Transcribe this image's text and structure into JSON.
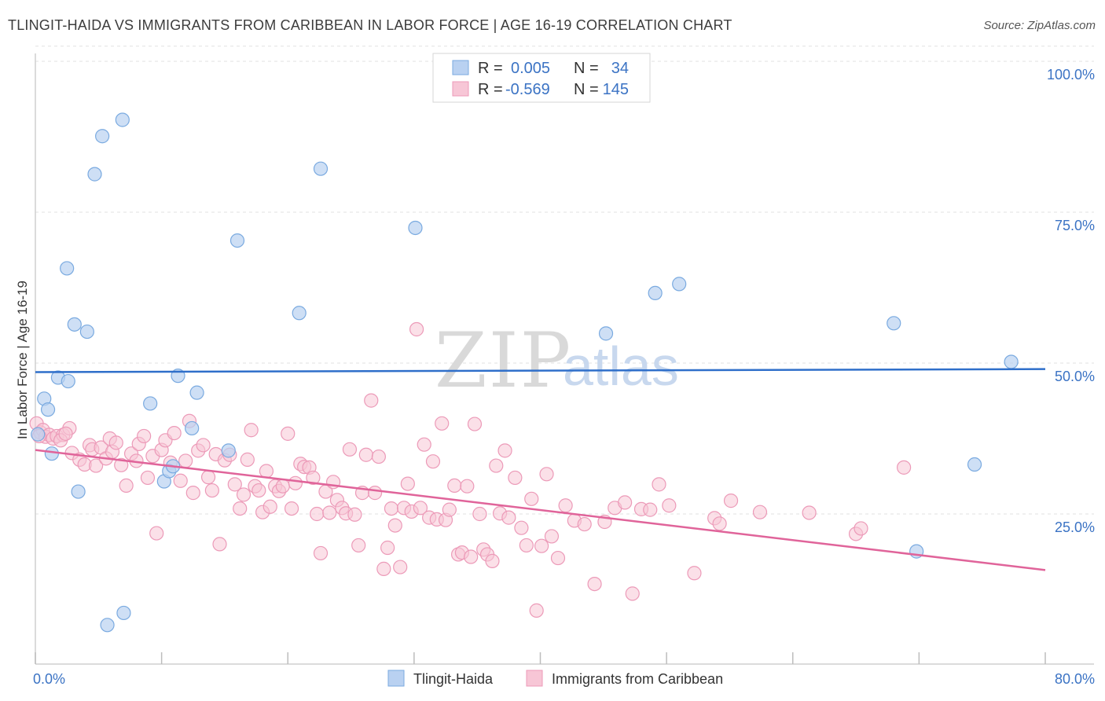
{
  "title": "TLINGIT-HAIDA VS IMMIGRANTS FROM CARIBBEAN IN LABOR FORCE | AGE 16-19 CORRELATION CHART",
  "source": "Source: ZipAtlas.com",
  "watermark": {
    "zip": "ZIP",
    "atlas": "atlas"
  },
  "chart_data": {
    "type": "scatter",
    "title": "TLINGIT-HAIDA VS IMMIGRANTS FROM CARIBBEAN IN LABOR FORCE | AGE 16-19 CORRELATION CHART",
    "xlabel": "",
    "ylabel": "In Labor Force | Age 16-19",
    "xlim": [
      0,
      80
    ],
    "ylim": [
      0,
      105
    ],
    "x_tick_labels": {
      "left": "0.0%",
      "right": "80.0%"
    },
    "y_ticks": [
      25,
      50,
      75,
      100
    ],
    "y_tick_labels": [
      "25.0%",
      "50.0%",
      "75.0%",
      "100.0%"
    ],
    "grid": true,
    "legend": {
      "position": "top-center",
      "entries": [
        {
          "r_label": "R =",
          "r_value": "0.005",
          "n_label": "N =",
          "n_value": "34"
        },
        {
          "r_label": "R =",
          "r_value": "-0.569",
          "n_label": "N =",
          "n_value": "145"
        }
      ]
    },
    "series": [
      {
        "name": "Tlingit-Haida",
        "color": "#7aaae0",
        "fill": "#b9d1f1",
        "trend": {
          "x": [
            0,
            80
          ],
          "y": [
            48.5,
            49.0
          ],
          "color": "#2f6fca"
        },
        "points": [
          [
            0.2,
            38.2
          ],
          [
            0.7,
            44.1
          ],
          [
            1.0,
            42.3
          ],
          [
            1.3,
            35.0
          ],
          [
            1.8,
            47.6
          ],
          [
            2.6,
            47.0
          ],
          [
            2.5,
            65.7
          ],
          [
            3.1,
            56.4
          ],
          [
            3.4,
            28.7
          ],
          [
            4.1,
            55.2
          ],
          [
            4.7,
            81.3
          ],
          [
            5.3,
            87.6
          ],
          [
            5.7,
            6.6
          ],
          [
            6.9,
            90.3
          ],
          [
            7.0,
            8.6
          ],
          [
            9.1,
            43.3
          ],
          [
            10.2,
            30.4
          ],
          [
            10.6,
            32.1
          ],
          [
            11.3,
            47.9
          ],
          [
            12.4,
            39.2
          ],
          [
            12.8,
            45.1
          ],
          [
            15.3,
            35.5
          ],
          [
            16.0,
            70.3
          ],
          [
            20.9,
            58.3
          ],
          [
            22.6,
            82.2
          ],
          [
            30.1,
            72.4
          ],
          [
            45.2,
            54.9
          ],
          [
            49.1,
            61.6
          ],
          [
            51.0,
            63.1
          ],
          [
            68.0,
            56.6
          ],
          [
            69.8,
            18.8
          ],
          [
            74.4,
            33.2
          ],
          [
            77.3,
            50.2
          ],
          [
            10.9,
            32.9
          ]
        ]
      },
      {
        "name": "Immigrants from Caribbean",
        "color": "#ec9ab8",
        "fill": "#f7c6d6",
        "trend": {
          "x": [
            0,
            80
          ],
          "y": [
            35.6,
            15.7
          ],
          "color": "#e0649a"
        },
        "points": [
          [
            0.1,
            40.0
          ],
          [
            0.4,
            38.5
          ],
          [
            0.6,
            38.9
          ],
          [
            0.8,
            37.8
          ],
          [
            1.1,
            38.1
          ],
          [
            1.4,
            37.5
          ],
          [
            1.7,
            37.9
          ],
          [
            2.2,
            38.1
          ],
          [
            2.7,
            39.2
          ],
          [
            2.9,
            35.1
          ],
          [
            3.5,
            34.0
          ],
          [
            3.9,
            33.2
          ],
          [
            4.3,
            36.4
          ],
          [
            4.5,
            35.7
          ],
          [
            4.8,
            33.0
          ],
          [
            5.2,
            36.0
          ],
          [
            5.6,
            34.2
          ],
          [
            5.9,
            37.5
          ],
          [
            6.1,
            35.3
          ],
          [
            6.4,
            36.8
          ],
          [
            6.8,
            33.1
          ],
          [
            7.2,
            29.7
          ],
          [
            7.6,
            35.0
          ],
          [
            8.0,
            33.8
          ],
          [
            8.2,
            36.6
          ],
          [
            8.6,
            37.9
          ],
          [
            8.9,
            31.0
          ],
          [
            9.3,
            34.6
          ],
          [
            9.6,
            21.8
          ],
          [
            10.0,
            35.6
          ],
          [
            10.3,
            37.2
          ],
          [
            10.7,
            33.5
          ],
          [
            11.0,
            38.4
          ],
          [
            11.5,
            30.5
          ],
          [
            11.9,
            33.8
          ],
          [
            12.2,
            40.4
          ],
          [
            12.5,
            28.5
          ],
          [
            12.9,
            35.5
          ],
          [
            13.3,
            36.4
          ],
          [
            13.7,
            31.1
          ],
          [
            14.0,
            28.9
          ],
          [
            14.3,
            34.9
          ],
          [
            14.6,
            20.0
          ],
          [
            15.0,
            33.9
          ],
          [
            15.4,
            34.8
          ],
          [
            15.8,
            29.9
          ],
          [
            16.2,
            25.9
          ],
          [
            16.5,
            28.2
          ],
          [
            16.8,
            34.0
          ],
          [
            17.1,
            38.9
          ],
          [
            17.4,
            29.6
          ],
          [
            17.7,
            28.9
          ],
          [
            18.0,
            25.3
          ],
          [
            18.3,
            32.1
          ],
          [
            18.6,
            26.2
          ],
          [
            19.0,
            29.6
          ],
          [
            19.3,
            28.8
          ],
          [
            19.6,
            29.6
          ],
          [
            20.0,
            38.3
          ],
          [
            20.3,
            25.9
          ],
          [
            20.6,
            30.1
          ],
          [
            21.0,
            33.3
          ],
          [
            21.3,
            32.8
          ],
          [
            21.7,
            32.7
          ],
          [
            22.0,
            31.0
          ],
          [
            22.3,
            25.0
          ],
          [
            22.6,
            18.5
          ],
          [
            23.0,
            28.7
          ],
          [
            23.3,
            25.2
          ],
          [
            23.6,
            30.3
          ],
          [
            23.9,
            27.3
          ],
          [
            24.3,
            26.0
          ],
          [
            24.6,
            25.1
          ],
          [
            24.9,
            35.7
          ],
          [
            25.3,
            24.9
          ],
          [
            25.6,
            19.8
          ],
          [
            25.9,
            28.5
          ],
          [
            26.2,
            34.8
          ],
          [
            26.6,
            43.8
          ],
          [
            26.9,
            28.5
          ],
          [
            27.2,
            34.5
          ],
          [
            27.6,
            15.9
          ],
          [
            27.9,
            19.4
          ],
          [
            28.2,
            25.9
          ],
          [
            28.5,
            23.1
          ],
          [
            28.9,
            16.2
          ],
          [
            29.2,
            26.0
          ],
          [
            29.5,
            30.0
          ],
          [
            29.8,
            25.4
          ],
          [
            30.2,
            55.6
          ],
          [
            30.5,
            26.0
          ],
          [
            30.8,
            36.5
          ],
          [
            31.2,
            24.4
          ],
          [
            31.5,
            33.7
          ],
          [
            31.8,
            24.1
          ],
          [
            32.2,
            40.0
          ],
          [
            32.5,
            24.0
          ],
          [
            32.8,
            25.7
          ],
          [
            33.2,
            29.7
          ],
          [
            33.5,
            18.3
          ],
          [
            33.8,
            18.6
          ],
          [
            34.2,
            29.6
          ],
          [
            34.5,
            17.9
          ],
          [
            34.8,
            39.9
          ],
          [
            35.2,
            25.0
          ],
          [
            35.5,
            19.1
          ],
          [
            35.8,
            18.3
          ],
          [
            36.2,
            17.2
          ],
          [
            36.5,
            33.0
          ],
          [
            36.8,
            25.1
          ],
          [
            37.2,
            35.5
          ],
          [
            37.5,
            24.4
          ],
          [
            38.0,
            31.0
          ],
          [
            38.5,
            22.7
          ],
          [
            38.9,
            19.8
          ],
          [
            39.3,
            27.5
          ],
          [
            39.7,
            9.0
          ],
          [
            40.1,
            19.7
          ],
          [
            40.5,
            31.6
          ],
          [
            40.9,
            21.3
          ],
          [
            41.4,
            17.7
          ],
          [
            42.0,
            26.4
          ],
          [
            42.7,
            23.9
          ],
          [
            43.5,
            23.3
          ],
          [
            44.3,
            13.4
          ],
          [
            45.1,
            23.7
          ],
          [
            45.9,
            26.0
          ],
          [
            46.7,
            26.9
          ],
          [
            47.3,
            11.8
          ],
          [
            48.0,
            25.8
          ],
          [
            48.7,
            25.7
          ],
          [
            49.4,
            29.9
          ],
          [
            50.2,
            26.4
          ],
          [
            52.2,
            15.2
          ],
          [
            53.8,
            24.3
          ],
          [
            54.2,
            23.4
          ],
          [
            55.1,
            27.2
          ],
          [
            57.4,
            25.3
          ],
          [
            61.3,
            25.2
          ],
          [
            65.0,
            21.7
          ],
          [
            65.4,
            22.6
          ],
          [
            68.8,
            32.7
          ],
          [
            0.3,
            37.9
          ],
          [
            2.0,
            37.2
          ],
          [
            2.4,
            38.3
          ]
        ]
      }
    ]
  },
  "bottom_legend": {
    "series1": "Tlingit-Haida",
    "series2": "Immigrants from Caribbean"
  }
}
